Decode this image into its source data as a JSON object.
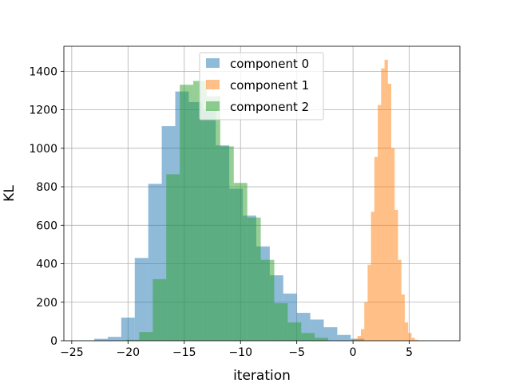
{
  "chart_data": {
    "type": "histogram",
    "title": "",
    "xlabel": "iteration",
    "ylabel": "KL",
    "xlim": [
      -25.7,
      9.5
    ],
    "ylim": [
      0,
      1530
    ],
    "xticks": [
      -25,
      -20,
      -15,
      -10,
      -5,
      0,
      5
    ],
    "xtick_labels": [
      "−25",
      "−20",
      "−15",
      "−10",
      "−5",
      "0",
      "5"
    ],
    "yticks": [
      0,
      200,
      400,
      600,
      800,
      1000,
      1200,
      1400
    ],
    "ytick_labels": [
      "0",
      "200",
      "400",
      "600",
      "800",
      "1000",
      "1200",
      "1400"
    ],
    "grid": true,
    "legend_position": "top-center",
    "series": [
      {
        "name": "component 0",
        "color": "#1f77b4",
        "opacity": 0.5,
        "bin_edges": [
          -24.2,
          -23.0,
          -21.8,
          -20.6,
          -19.4,
          -18.2,
          -17.0,
          -15.8,
          -14.6,
          -13.4,
          -12.2,
          -11.0,
          -9.8,
          -8.6,
          -7.4,
          -6.2,
          -5.0,
          -3.8,
          -2.6,
          -1.4,
          -0.2,
          1.0
        ],
        "counts": [
          2,
          10,
          20,
          120,
          430,
          815,
          1115,
          1295,
          1240,
          1200,
          1015,
          790,
          650,
          490,
          340,
          245,
          145,
          110,
          70,
          30,
          10
        ]
      },
      {
        "name": "component 1",
        "color": "#ff7f0e",
        "opacity": 0.5,
        "bin_edges": [
          0.1,
          0.4,
          0.7,
          1.0,
          1.3,
          1.6,
          1.9,
          2.2,
          2.5,
          2.8,
          3.1,
          3.4,
          3.7,
          4.0,
          4.3,
          4.6,
          4.9,
          5.2,
          5.5,
          5.8
        ],
        "counts": [
          10,
          25,
          60,
          200,
          395,
          670,
          955,
          1225,
          1415,
          1460,
          1335,
          1000,
          680,
          420,
          240,
          95,
          40,
          15,
          5
        ]
      },
      {
        "name": "component 2",
        "color": "#2ca02c",
        "opacity": 0.5,
        "bin_edges": [
          -20.2,
          -19.0,
          -17.8,
          -16.6,
          -15.4,
          -14.2,
          -13.0,
          -11.8,
          -10.6,
          -9.4,
          -8.2,
          -7.0,
          -5.8,
          -4.6,
          -3.4,
          -2.2
        ],
        "counts": [
          5,
          45,
          320,
          865,
          1330,
          1350,
          1270,
          1010,
          820,
          640,
          420,
          195,
          95,
          40,
          15
        ]
      }
    ]
  }
}
